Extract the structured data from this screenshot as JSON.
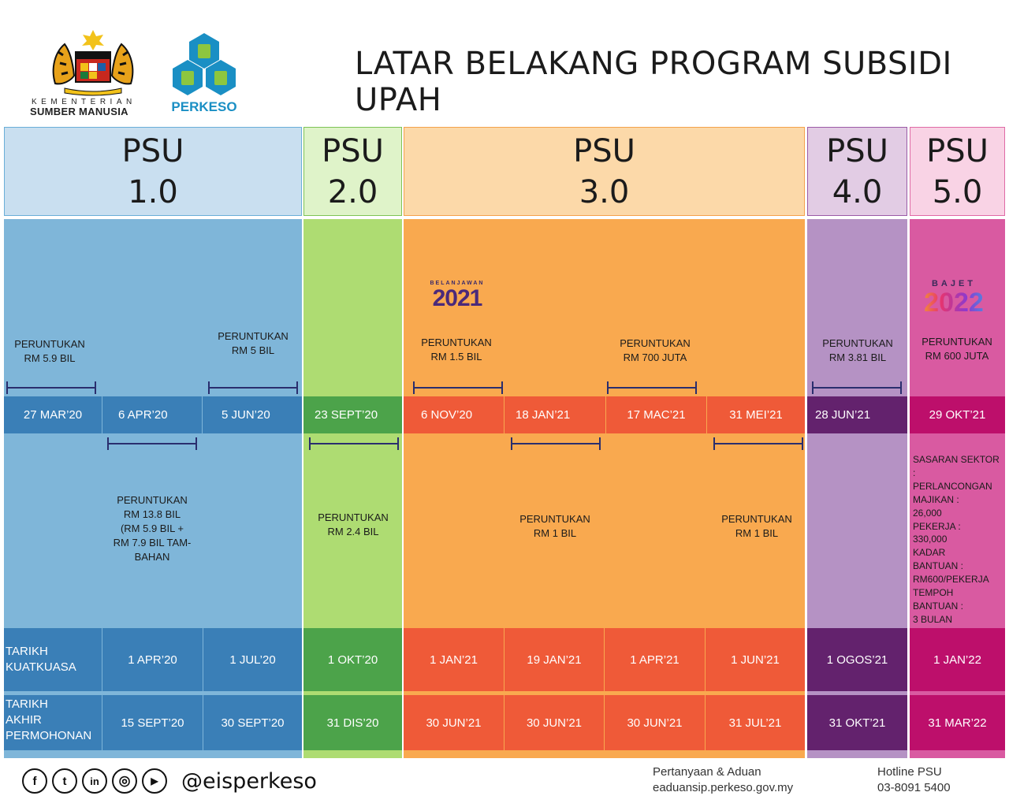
{
  "title": "LATAR BELAKANG PROGRAM SUBSIDI UPAH",
  "ministry": {
    "top": "KEMENTERIAN",
    "bottom": "SUMBER MANUSIA"
  },
  "perkeso_label": "PERKESO",
  "headers": [
    {
      "line1": "PSU",
      "line2": "1.0",
      "color": "#c9dff0",
      "border": "#6aaed8"
    },
    {
      "line1": "PSU",
      "line2": "2.0",
      "color": "#dff3c9",
      "border": "#7ec356"
    },
    {
      "line1": "PSU",
      "line2": "3.0",
      "color": "#fcd9a9",
      "border": "#f4a24c"
    },
    {
      "line1": "PSU",
      "line2": "4.0",
      "color": "#e2cce4",
      "border": "#9b5aa6"
    },
    {
      "line1": "PSU",
      "line2": "5.0",
      "color": "#f9d3e5",
      "border": "#e06aa6"
    }
  ],
  "budget_logos": {
    "b2021": {
      "small": "BELANJAWAN",
      "big": "2021"
    },
    "b2022": {
      "small": "BAJET",
      "big": "2022"
    }
  },
  "upper_labels": [
    {
      "line1": "PERUNTUKAN",
      "line2": "RM 5.9 BIL"
    },
    {
      "line1": "PERUNTUKAN",
      "line2": "RM 5 BIL"
    },
    {
      "line1": "PERUNTUKAN",
      "line2": "RM 1.5 BIL"
    },
    {
      "line1": "PERUNTUKAN",
      "line2": "RM 700 JUTA"
    },
    {
      "line1": "PERUNTUKAN",
      "line2": "RM 3.81 BIL"
    },
    {
      "line1": "PERUNTUKAN",
      "line2": "RM 600 JUTA"
    }
  ],
  "dates": [
    "27 MAR’20",
    "6 APR’20",
    "5 JUN’20",
    "23 SEPT’20",
    "6 NOV’20",
    "18 JAN’21",
    "17 MAC’21",
    "31 MEI’21",
    "28 JUN’21",
    "29 OKT’21"
  ],
  "lower_labels": {
    "psu1": [
      "PERUNTUKAN",
      "RM 13.8 BIL",
      "(RM 5.9 BIL +",
      "RM 7.9 BIL TAM-",
      "BAHAN"
    ],
    "psu2": [
      "PERUNTUKAN",
      "RM 2.4 BIL"
    ],
    "psu3a": [
      "PERUNTUKAN",
      "RM 1 BIL"
    ],
    "psu3b": [
      "PERUNTUKAN",
      "RM 1 BIL"
    ],
    "psu5": [
      "SASARAN SEKTOR",
      ":",
      "PERLANCONGAN",
      "MAJIKAN :",
      "26,000",
      "PEKERJA :",
      "330,000",
      "KADAR",
      "BANTUAN :",
      "RM600/PEKERJA",
      "TEMPOH",
      "BANTUAN :",
      "3 BULAN"
    ]
  },
  "rows": {
    "kuatkuasa": {
      "label1": "TARIKH",
      "label2": "KUATKUASA",
      "values": [
        "1 APR’20",
        "1 JUL’20",
        "1 OKT’20",
        "1 JAN’21",
        "19 JAN’21",
        "1 APR’21",
        "1 JUN’21",
        "1 OGOS’21",
        "1 JAN’22"
      ]
    },
    "akhir": {
      "label1": "TARIKH",
      "label2": "AKHIR",
      "label3": "PERMOHONAN",
      "values": [
        "15 SEPT’20",
        "30 SEPT’20",
        "31 DIS’20",
        "30 JUN’21",
        "30 JUN’21",
        "30 JUN’21",
        "31 JUL’21",
        "31 OKT’21",
        "31 MAR’22"
      ]
    }
  },
  "footer": {
    "handle": "@eisperkeso",
    "social_icons": [
      "facebook-icon",
      "twitter-icon",
      "linkedin-icon",
      "instagram-icon",
      "youtube-icon"
    ],
    "social_glyphs": [
      "f",
      "t",
      "in",
      "◎",
      "▶"
    ],
    "contact_title": "Pertanyaan & Aduan",
    "contact_value": "eaduansip.perkeso.gov.my",
    "hotline_title": "Hotline PSU",
    "hotline_value": "03-8091 5400"
  },
  "colors": {
    "psu1_bg": "#7fb6d9",
    "psu1_dark": "#3a7fb7",
    "psu2_bg": "#aedc72",
    "psu2_dark": "#4ca34a",
    "psu3_bg": "#f9a94f",
    "psu3_dark": "#ef5a38",
    "psu4_bg": "#b592c4",
    "psu4_dark": "#63226d",
    "psu5_bg": "#d95aa1",
    "psu5_dark": "#bd0f6b"
  }
}
